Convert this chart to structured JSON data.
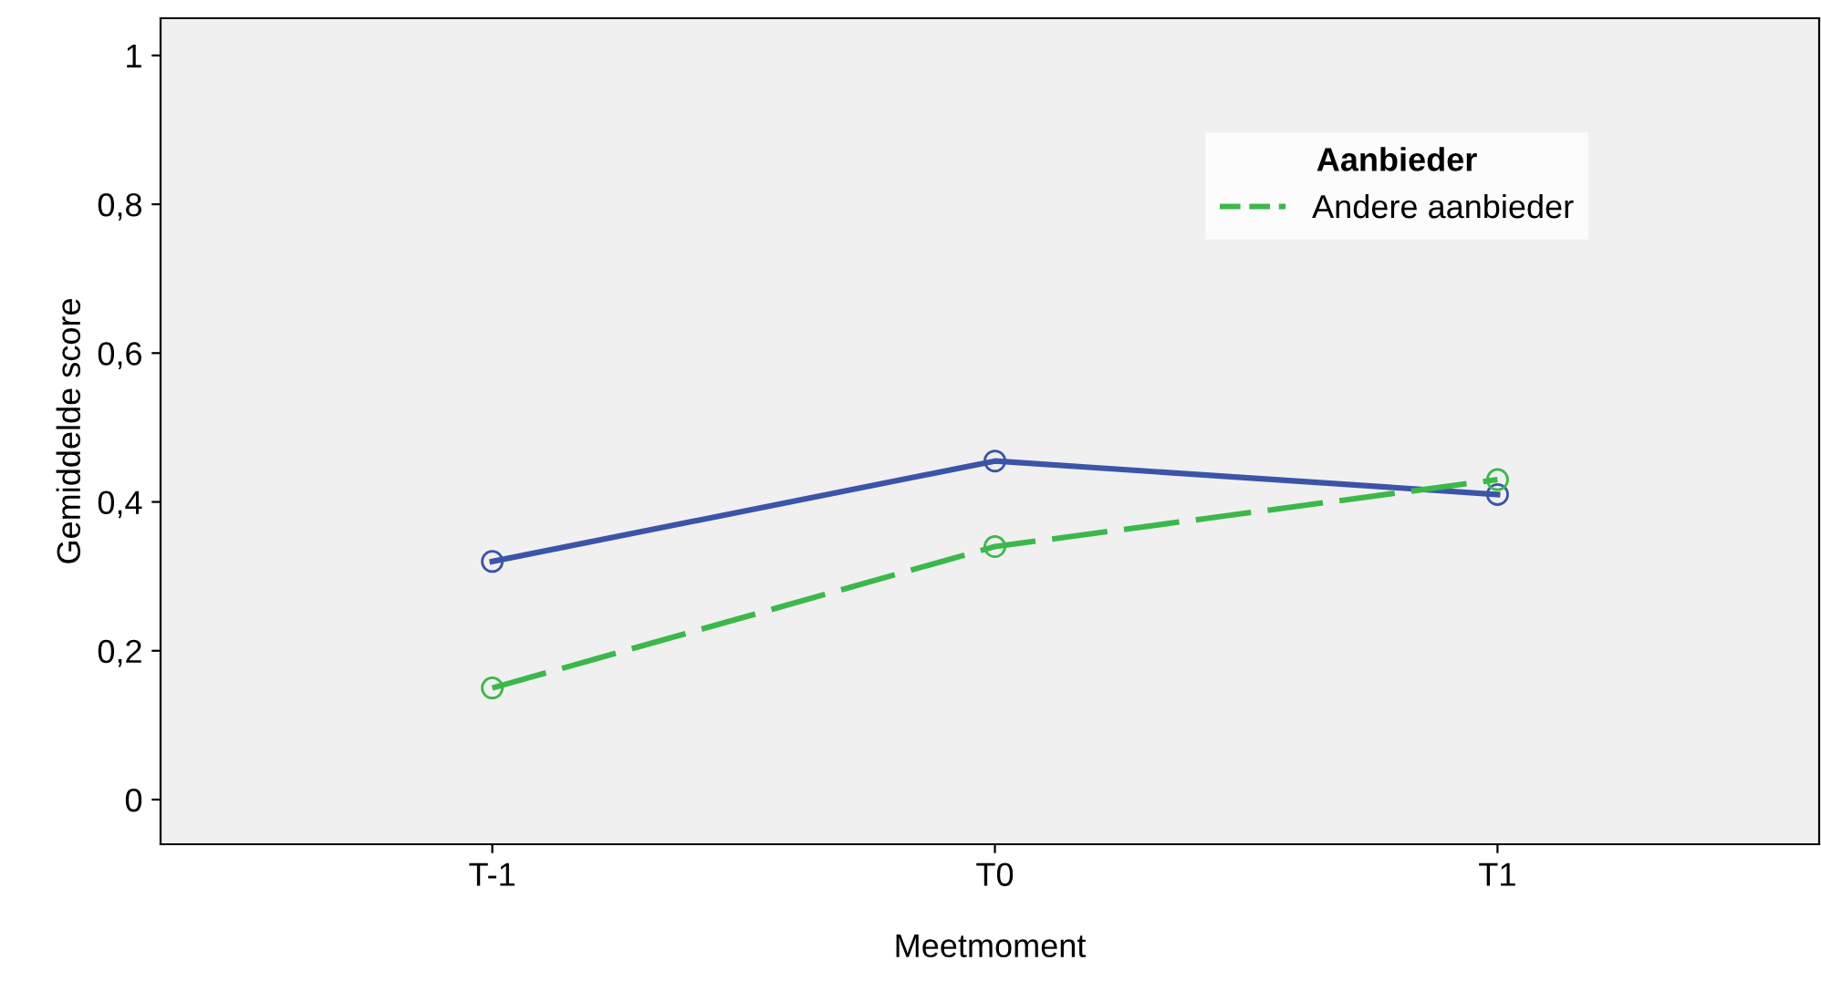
{
  "chart_data": {
    "type": "line",
    "xlabel": "Meetmoment",
    "ylabel": "Gemiddelde score",
    "legend_title": "Aanbieder",
    "categories": [
      "T-1",
      "T0",
      "T1"
    ],
    "series": [
      {
        "color": "#3c54a8",
        "values": [
          0.32,
          0.455,
          0.41
        ],
        "line_style": "solid"
      },
      {
        "name": "Andere aanbieder",
        "color": "#3cb84a",
        "values": [
          0.15,
          0.34,
          0.43
        ],
        "line_style": "dashed"
      }
    ],
    "ylim": [
      -0.06,
      1.05
    ],
    "yticks": [
      {
        "value": 0,
        "label": "0"
      },
      {
        "value": 0.2,
        "label": "0,2"
      },
      {
        "value": 0.4,
        "label": "0,4"
      },
      {
        "value": 0.6,
        "label": "0,6"
      },
      {
        "value": 0.8,
        "label": "0,8"
      },
      {
        "value": 1,
        "label": "1"
      }
    ],
    "marker": "circle",
    "grid": false,
    "legend": "top right"
  }
}
